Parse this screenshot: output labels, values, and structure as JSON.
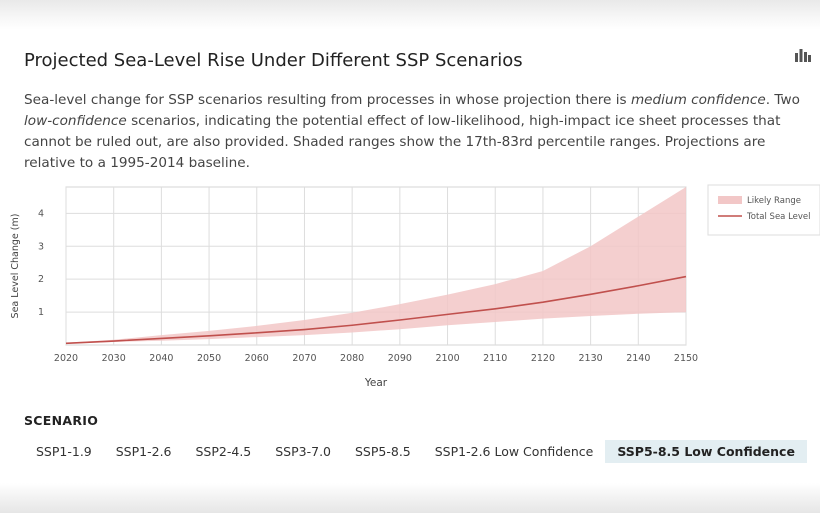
{
  "header": {
    "title": "Projected Sea-Level Rise Under Different SSP Scenarios",
    "icon": "bar-chart-icon"
  },
  "description": {
    "part1": "Sea-level change for SSP scenarios resulting from processes in whose projection there is ",
    "em1": "medium confidence",
    "part2": ". Two ",
    "em2": "low-confidence",
    "part3": " scenarios, indicating the potential effect of low-likelihood, high-impact ice sheet processes that cannot be ruled out, are also provided. Shaded ranges show the 17th-83rd percentile ranges. Projections are relative to a 1995-2014 baseline."
  },
  "chart_data": {
    "type": "line",
    "xlabel": "Year",
    "ylabel": "Sea Level Change (m)",
    "xlim": [
      2020,
      2150
    ],
    "ylim": [
      0,
      4.8
    ],
    "x_ticks": [
      2020,
      2030,
      2040,
      2050,
      2060,
      2070,
      2080,
      2090,
      2100,
      2110,
      2120,
      2130,
      2140,
      2150
    ],
    "y_ticks": [
      1,
      2,
      3,
      4
    ],
    "grid": true,
    "legend_position": "right",
    "x": [
      2020,
      2030,
      2040,
      2050,
      2060,
      2070,
      2080,
      2090,
      2100,
      2110,
      2120,
      2130,
      2140,
      2150
    ],
    "series": [
      {
        "name": "Total Sea Level",
        "type": "line",
        "color": "#c0504d",
        "values": [
          0.05,
          0.12,
          0.2,
          0.28,
          0.37,
          0.47,
          0.6,
          0.76,
          0.93,
          1.1,
          1.3,
          1.54,
          1.8,
          2.08
        ]
      },
      {
        "name": "Likely Range",
        "type": "band",
        "color": "#f2c7c7",
        "lower": [
          0.04,
          0.09,
          0.13,
          0.18,
          0.24,
          0.3,
          0.38,
          0.48,
          0.6,
          0.7,
          0.8,
          0.88,
          0.95,
          1.0
        ],
        "upper": [
          0.07,
          0.16,
          0.3,
          0.43,
          0.58,
          0.76,
          0.98,
          1.24,
          1.53,
          1.85,
          2.25,
          3.0,
          3.9,
          4.8
        ]
      }
    ]
  },
  "scenario": {
    "heading": "SCENARIO",
    "tabs": [
      {
        "label": "SSP1-1.9",
        "active": false
      },
      {
        "label": "SSP1-2.6",
        "active": false
      },
      {
        "label": "SSP2-4.5",
        "active": false
      },
      {
        "label": "SSP3-7.0",
        "active": false
      },
      {
        "label": "SSP5-8.5",
        "active": false
      },
      {
        "label": "SSP1-2.6 Low Confidence",
        "active": false
      },
      {
        "label": "SSP5-8.5 Low Confidence",
        "active": true
      }
    ]
  }
}
